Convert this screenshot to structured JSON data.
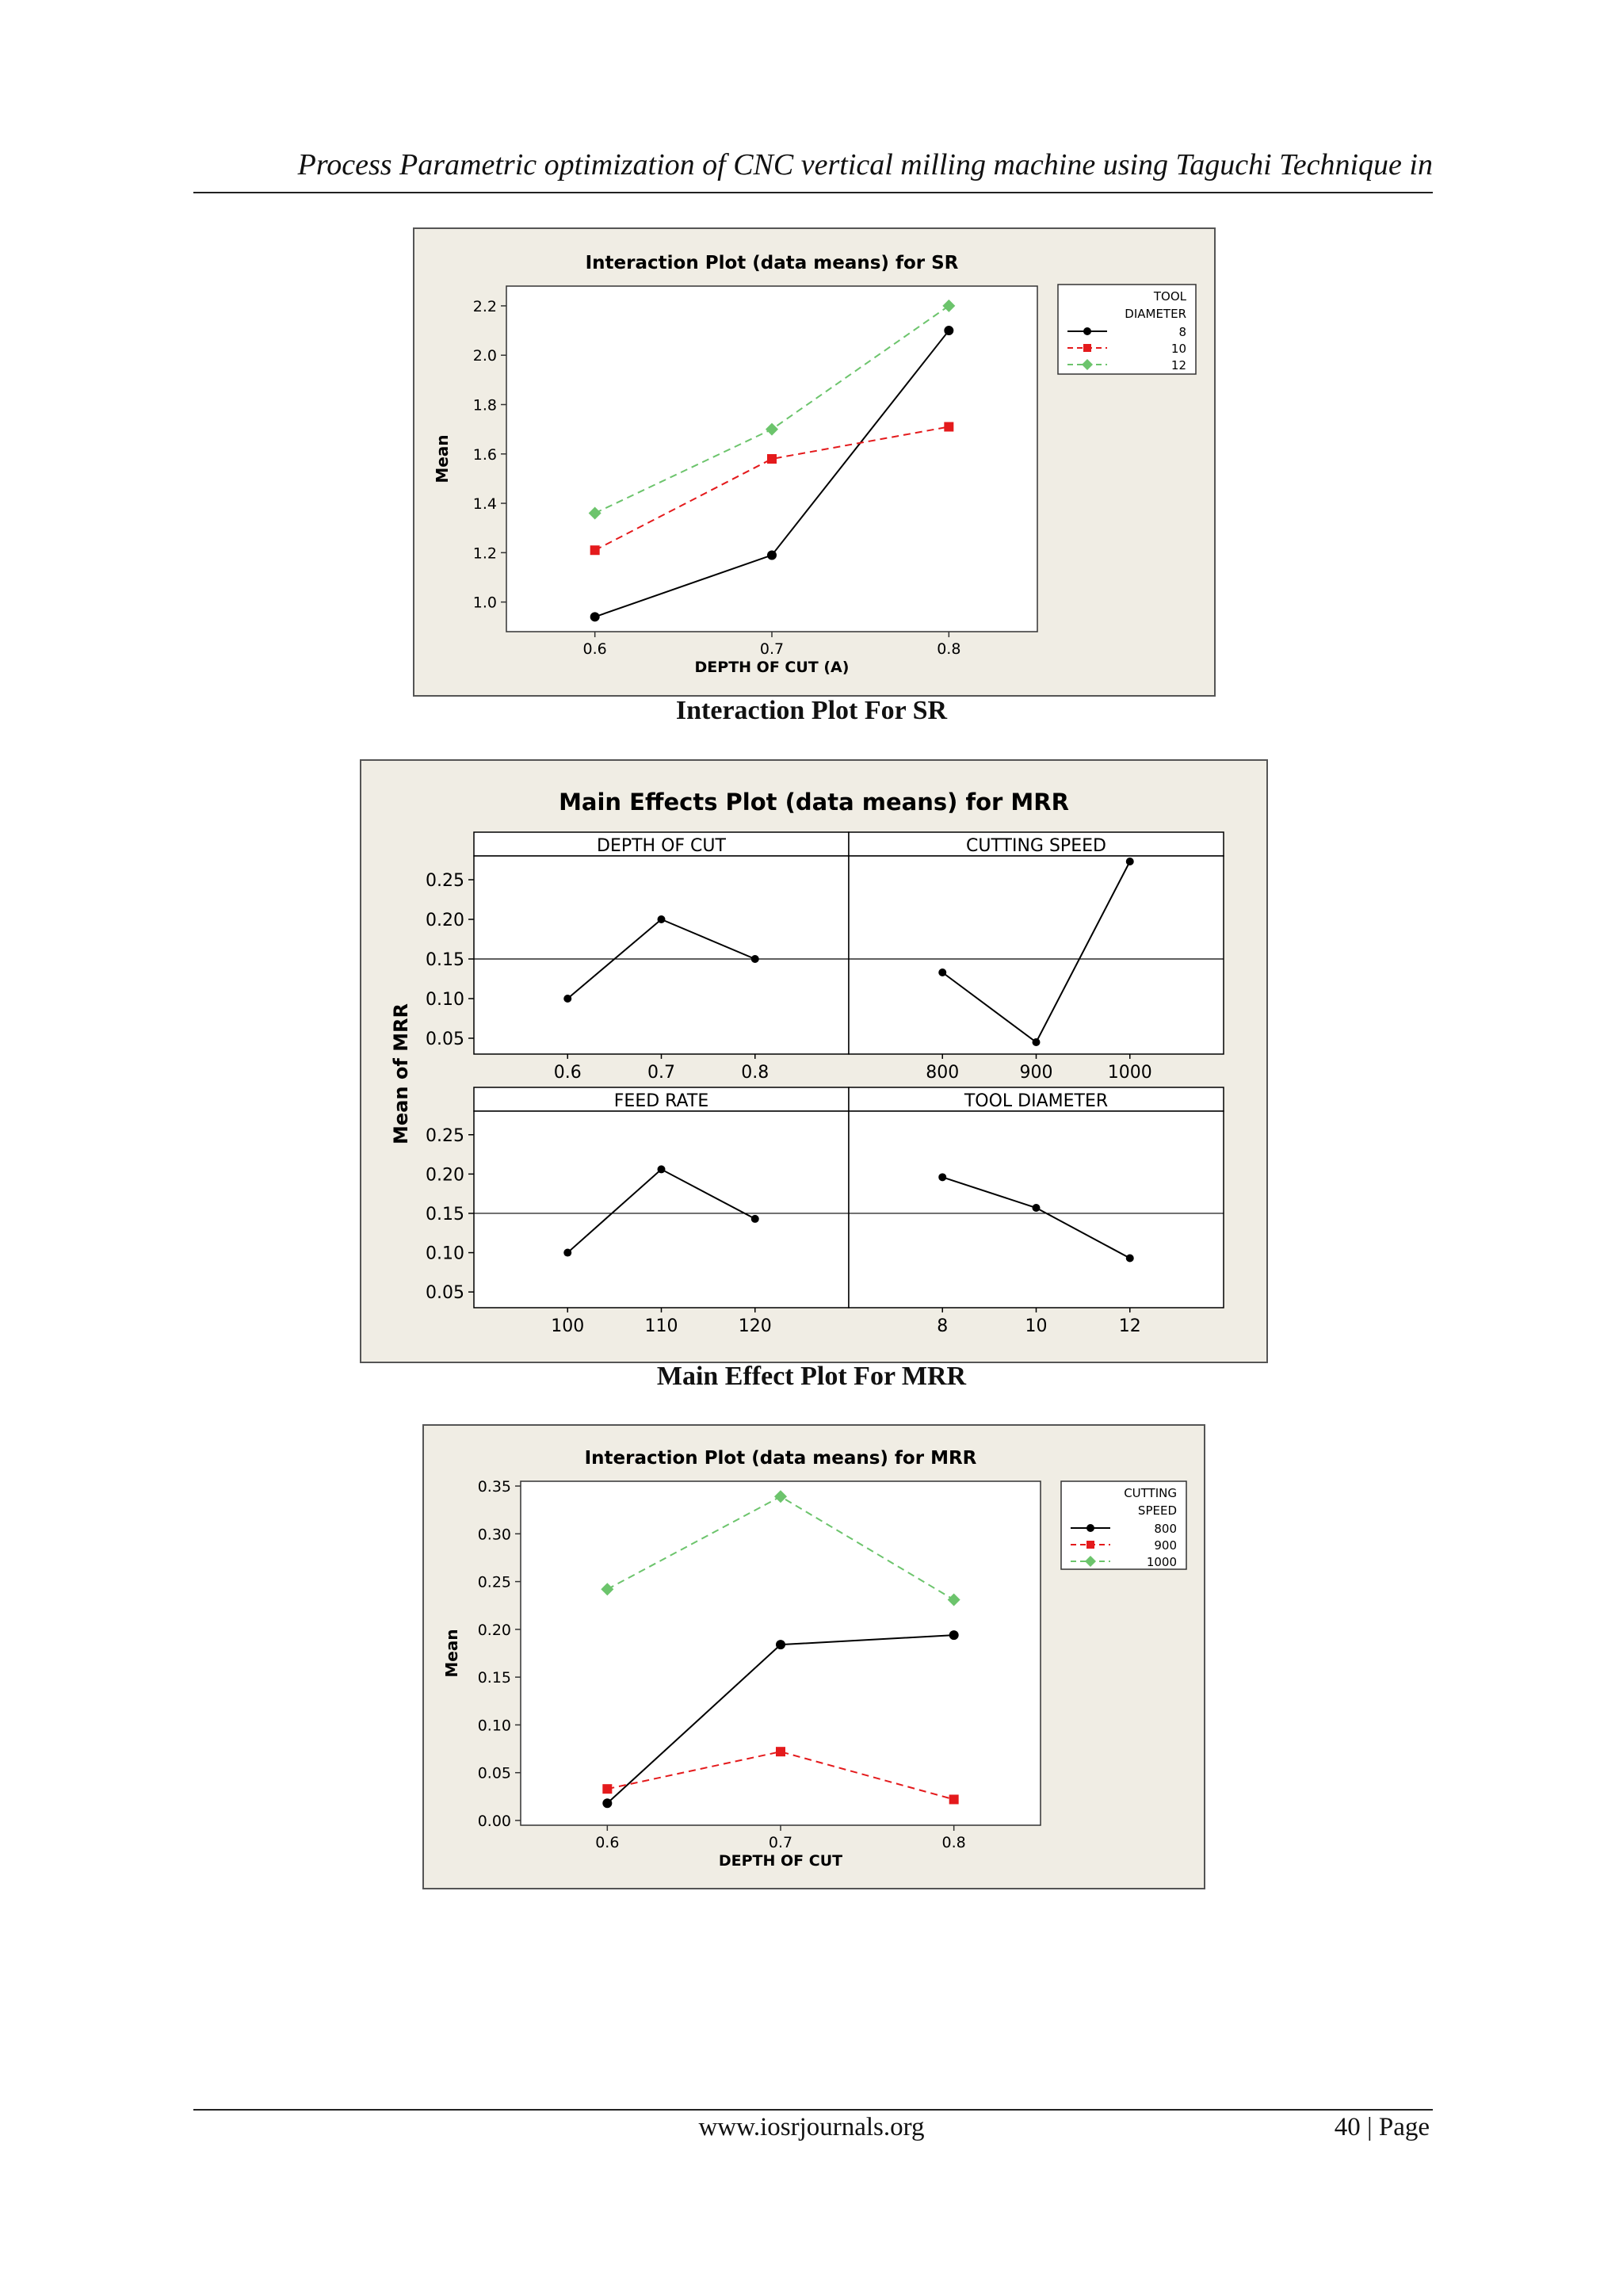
{
  "header": {
    "running_title": "Process Parametric optimization of CNC vertical milling machine using Taguchi Technique in"
  },
  "footer": {
    "url": "www.iosrjournals.org",
    "page": "40 | Page"
  },
  "figures": {
    "sr": {
      "caption": "Interaction Plot For SR"
    },
    "mrr_main": {
      "caption": "Main Effect Plot For MRR"
    }
  },
  "chart_data": [
    {
      "id": "interaction_sr",
      "type": "line",
      "title": "Interaction Plot (data means) for SR",
      "xlabel": "DEPTH OF CUT (A)",
      "ylabel": "Mean",
      "x": [
        0.6,
        0.7,
        0.8
      ],
      "xticks": [
        "0.6",
        "0.7",
        "0.8"
      ],
      "ylim": [
        0.88,
        2.28
      ],
      "yticks": [
        "1.0",
        "1.2",
        "1.4",
        "1.6",
        "1.8",
        "2.0",
        "2.2"
      ],
      "legend_title": [
        "TOOL",
        "DIAMETER"
      ],
      "legend_position": "top-right, outside plot",
      "series": [
        {
          "name": "8",
          "values": [
            0.94,
            1.19,
            2.1
          ],
          "color": "#000000",
          "dash": "solid",
          "marker": "circle"
        },
        {
          "name": "10",
          "values": [
            1.21,
            1.58,
            1.71
          ],
          "color": "#e41a1c",
          "dash": "dashed",
          "marker": "square"
        },
        {
          "name": "12",
          "values": [
            1.36,
            1.7,
            2.2
          ],
          "color": "#6cc46c",
          "dash": "dashed",
          "marker": "diamond"
        }
      ]
    },
    {
      "id": "main_effects_mrr",
      "type": "line",
      "title": "Main Effects Plot (data means) for MRR",
      "ylabel": "Mean of MRR",
      "ylim": [
        0.03,
        0.28
      ],
      "yticks": [
        "0.05",
        "0.10",
        "0.15",
        "0.20",
        "0.25"
      ],
      "mean_line": 0.15,
      "panels": [
        {
          "title": "DEPTH OF CUT",
          "xticks": [
            "0.6",
            "0.7",
            "0.8"
          ],
          "values": [
            0.1,
            0.2,
            0.15
          ]
        },
        {
          "title": "CUTTING SPEED",
          "xticks": [
            "800",
            "900",
            "1000"
          ],
          "values": [
            0.133,
            0.045,
            0.273
          ]
        },
        {
          "title": "FEED RATE",
          "xticks": [
            "100",
            "110",
            "120"
          ],
          "values": [
            0.1,
            0.206,
            0.143
          ]
        },
        {
          "title": "TOOL DIAMETER",
          "xticks": [
            "8",
            "10",
            "12"
          ],
          "values": [
            0.196,
            0.157,
            0.093
          ]
        }
      ]
    },
    {
      "id": "interaction_mrr",
      "type": "line",
      "title": "Interaction Plot (data means) for MRR",
      "xlabel": "DEPTH OF CUT",
      "ylabel": "Mean",
      "x": [
        0.6,
        0.7,
        0.8
      ],
      "xticks": [
        "0.6",
        "0.7",
        "0.8"
      ],
      "ylim": [
        -0.005,
        0.355
      ],
      "yticks": [
        "0.00",
        "0.05",
        "0.10",
        "0.15",
        "0.20",
        "0.25",
        "0.30",
        "0.35"
      ],
      "legend_title": [
        "CUTTING",
        "SPEED"
      ],
      "legend_position": "top-right, outside plot",
      "series": [
        {
          "name": "800",
          "values": [
            0.018,
            0.184,
            0.194
          ],
          "color": "#000000",
          "dash": "solid",
          "marker": "circle"
        },
        {
          "name": "900",
          "values": [
            0.033,
            0.072,
            0.022
          ],
          "color": "#e41a1c",
          "dash": "dashed",
          "marker": "square"
        },
        {
          "name": "1000",
          "values": [
            0.242,
            0.339,
            0.231
          ],
          "color": "#6cc46c",
          "dash": "dashed",
          "marker": "diamond"
        }
      ]
    }
  ]
}
